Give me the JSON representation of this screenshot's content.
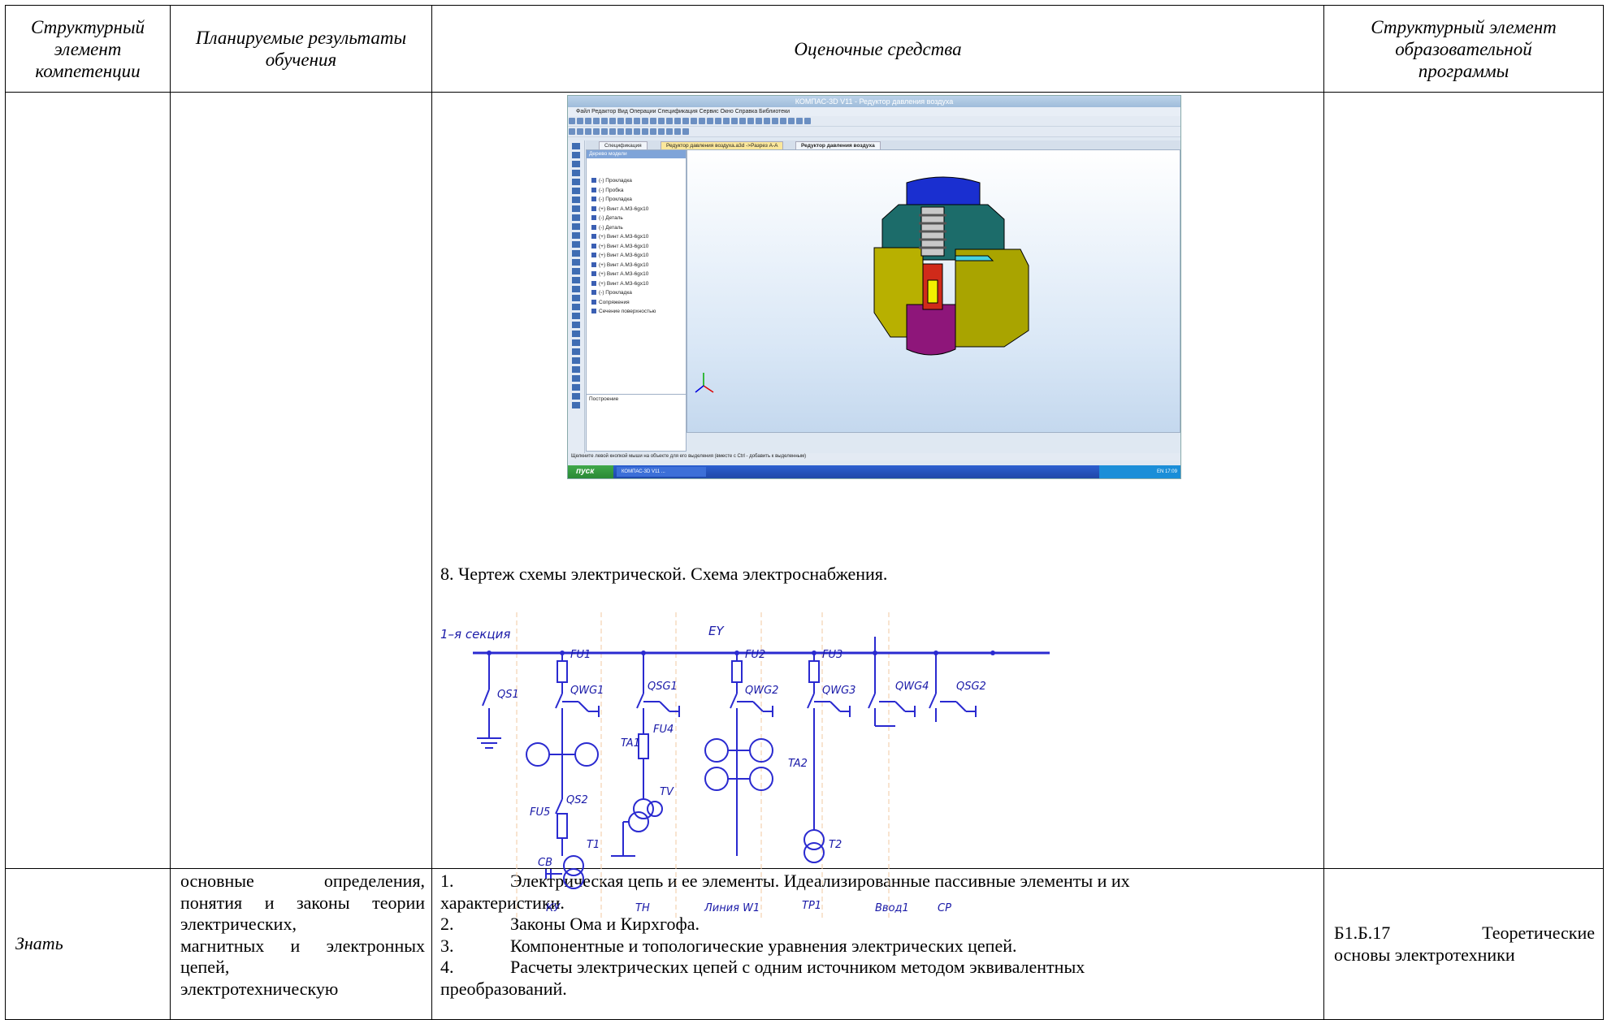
{
  "header": {
    "col1": "Структурный элемент компетенции",
    "col2": "Планируемые результаты обучения",
    "col3": "Оценочные средства",
    "col4": "Структурный элемент образовательной программы"
  },
  "kompas": {
    "title": "КОМПАС-3D V11 - Редуктор давления воздуха",
    "menu": "Файл  Редактор  Вид  Операции  Спецификация  Сервис  Окно  Справка  Библиотеки",
    "tabs": [
      "Спецификация",
      "Редуктор давления воздуха.a3d ->Разрез А-А",
      "Редуктор давления воздуха"
    ],
    "tree_header": "Дерево модели",
    "tree_items": [
      "(-) Прокладка",
      "(-) Пробка",
      "(-) Прокладка",
      "(+) Винт А.М3-6gx10",
      "(-) Деталь",
      "(-) Деталь",
      "(+) Винт А.М3-6gx10",
      "(+) Винт А.М3-6gx10",
      "(+) Винт А.М3-6gx10",
      "(+) Винт А.М3-6gx10",
      "(+) Винт А.М3-6gx10",
      "(+) Винт А.М3-6gx10",
      "(-) Прокладка",
      "Сопряжения",
      "Сечение поверхностью"
    ],
    "panel_tab": "Построение",
    "status": "Щелкните левой кнопкой мыши на объекте для его выделения (вместе с Ctrl - добавить к выделенным)",
    "start": "пуск",
    "task": "КОМПАС-3D V11 ...",
    "clock": "EN  17:09"
  },
  "caption8": "8. Чертеж схемы электрической. Схема электроснабжения.",
  "schematic": {
    "bus_label": "1–я секция",
    "bus_name": "EY",
    "labels": [
      "QS1",
      "FU1",
      "QWG1",
      "QSG1",
      "FU2",
      "QWG2",
      "FU3",
      "QWG3",
      "QWG4",
      "QSG2",
      "FU4",
      "TA1",
      "TA2",
      "TV",
      "QS2",
      "FU5",
      "T1",
      "CB",
      "T2"
    ],
    "bottom": [
      "КУ",
      "ТН",
      "Линия W1",
      "ТР1",
      "Ввод1",
      "СР"
    ]
  },
  "row3": {
    "col1": "Знать",
    "col2_lines": [
      "основные определения,",
      "понятия и законы теории",
      "электрических,",
      "магнитных и электронных",
      "цепей,",
      "электротехническую"
    ],
    "items": [
      {
        "num": "1.",
        "first": "Электрическая цепь и ее элементы. Идеализированные пассивные элементы и их",
        "rest": "характеристики."
      },
      {
        "num": "2.",
        "first": "Законы Ома и Кирхгофа.",
        "rest": ""
      },
      {
        "num": "3.",
        "first": "Компонентные и топологические уравнения электрических цепей.",
        "rest": ""
      },
      {
        "num": "4.",
        "first": "Расчеты электрических цепей с одним источником методом эквивалентных",
        "rest": "преобразований."
      }
    ],
    "col4_code": "Б1.Б.17",
    "col4_word": "Теоретические",
    "col4_rest": "основы электротехники"
  }
}
